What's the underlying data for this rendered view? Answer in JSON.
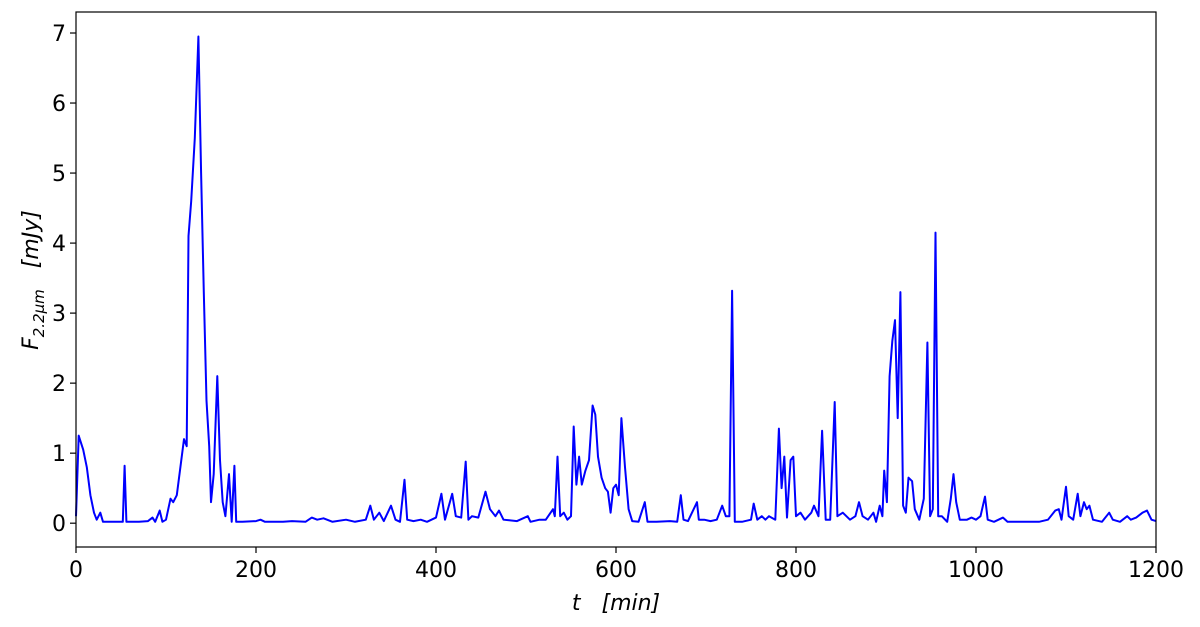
{
  "chart_data": {
    "type": "line",
    "x_label": {
      "symbol": "t",
      "unit": "[min]"
    },
    "y_label": {
      "symbol": "F",
      "subscript": "2.2μm",
      "unit": "[mJy]"
    },
    "xlim": [
      0,
      1200
    ],
    "xticks": [
      0,
      200,
      400,
      600,
      800,
      1000,
      1200
    ],
    "ylim": [
      -0.34,
      7.3
    ],
    "yticks": [
      0,
      1,
      2,
      3,
      4,
      5,
      6,
      7
    ],
    "series": [
      {
        "color": "#0000ff",
        "x": [
          0,
          3,
          8,
          12,
          16,
          20,
          23,
          27,
          30,
          52,
          54,
          56,
          70,
          80,
          85,
          88,
          93,
          96,
          100,
          105,
          108,
          112,
          117,
          120,
          123,
          125,
          128,
          132,
          136,
          139,
          142,
          145,
          148,
          150,
          153,
          157,
          160,
          163,
          166,
          170,
          173,
          176,
          178,
          185,
          200,
          205,
          210,
          230,
          240,
          255,
          262,
          268,
          275,
          285,
          300,
          310,
          322,
          327,
          331,
          337,
          342,
          350,
          355,
          360,
          365,
          368,
          375,
          383,
          390,
          400,
          406,
          410,
          418,
          422,
          428,
          433,
          436,
          440,
          447,
          455,
          460,
          466,
          470,
          475,
          490,
          502,
          505,
          515,
          522,
          530,
          532,
          535,
          538,
          542,
          546,
          550,
          553,
          556,
          559,
          562,
          566,
          570,
          574,
          577,
          580,
          584,
          588,
          591,
          594,
          597,
          600,
          603,
          606,
          610,
          614,
          618,
          625,
          632,
          635,
          645,
          660,
          668,
          672,
          675,
          680,
          690,
          692,
          698,
          705,
          712,
          718,
          722,
          726,
          729,
          732,
          740,
          750,
          753,
          757,
          762,
          766,
          770,
          777,
          781,
          784,
          787,
          790,
          794,
          797,
          800,
          805,
          810,
          817,
          820,
          825,
          829,
          833,
          838,
          843,
          846,
          852,
          860,
          866,
          870,
          874,
          880,
          886,
          889,
          893,
          896,
          898,
          901,
          904,
          907,
          910,
          913,
          916,
          919,
          922,
          925,
          929,
          932,
          937,
          942,
          946,
          949,
          952,
          955,
          958,
          962,
          968,
          972,
          975,
          978,
          982,
          990,
          995,
          1000,
          1005,
          1010,
          1013,
          1020,
          1030,
          1035,
          1050,
          1070,
          1080,
          1088,
          1092,
          1095,
          1100,
          1103,
          1108,
          1113,
          1116,
          1120,
          1123,
          1126,
          1130,
          1140,
          1148,
          1152,
          1160,
          1168,
          1172,
          1178,
          1185,
          1190,
          1195,
          1200
        ],
        "values": [
          0.1,
          1.25,
          1.05,
          0.8,
          0.4,
          0.15,
          0.05,
          0.15,
          0.02,
          0.02,
          0.82,
          0.02,
          0.02,
          0.03,
          0.08,
          0.02,
          0.18,
          0.02,
          0.05,
          0.35,
          0.3,
          0.4,
          0.9,
          1.2,
          1.1,
          4.1,
          4.6,
          5.5,
          6.95,
          5.0,
          3.3,
          1.75,
          1.1,
          0.3,
          0.7,
          2.1,
          0.9,
          0.3,
          0.1,
          0.7,
          0.02,
          0.82,
          0.02,
          0.02,
          0.03,
          0.05,
          0.02,
          0.02,
          0.03,
          0.02,
          0.08,
          0.05,
          0.07,
          0.02,
          0.05,
          0.02,
          0.05,
          0.25,
          0.05,
          0.15,
          0.03,
          0.25,
          0.05,
          0.02,
          0.62,
          0.05,
          0.03,
          0.05,
          0.02,
          0.08,
          0.42,
          0.05,
          0.42,
          0.1,
          0.08,
          0.88,
          0.05,
          0.1,
          0.08,
          0.45,
          0.2,
          0.1,
          0.18,
          0.05,
          0.03,
          0.1,
          0.02,
          0.05,
          0.05,
          0.2,
          0.1,
          0.95,
          0.1,
          0.15,
          0.05,
          0.1,
          1.38,
          0.55,
          0.95,
          0.55,
          0.75,
          0.9,
          1.68,
          1.55,
          0.95,
          0.65,
          0.5,
          0.45,
          0.15,
          0.5,
          0.55,
          0.4,
          1.5,
          0.8,
          0.2,
          0.03,
          0.02,
          0.3,
          0.02,
          0.02,
          0.03,
          0.02,
          0.4,
          0.05,
          0.03,
          0.3,
          0.05,
          0.05,
          0.03,
          0.05,
          0.25,
          0.1,
          0.1,
          3.32,
          0.02,
          0.02,
          0.05,
          0.28,
          0.05,
          0.1,
          0.05,
          0.1,
          0.05,
          1.35,
          0.5,
          0.95,
          0.08,
          0.9,
          0.95,
          0.1,
          0.15,
          0.05,
          0.15,
          0.25,
          0.1,
          1.32,
          0.05,
          0.05,
          1.73,
          0.1,
          0.15,
          0.05,
          0.1,
          0.3,
          0.1,
          0.05,
          0.15,
          0.02,
          0.25,
          0.1,
          0.75,
          0.3,
          2.1,
          2.6,
          2.9,
          1.5,
          3.3,
          0.25,
          0.15,
          0.65,
          0.6,
          0.2,
          0.05,
          0.35,
          2.58,
          0.1,
          0.2,
          4.15,
          0.1,
          0.1,
          0.02,
          0.35,
          0.7,
          0.3,
          0.05,
          0.05,
          0.08,
          0.05,
          0.1,
          0.38,
          0.05,
          0.02,
          0.08,
          0.02,
          0.02,
          0.02,
          0.05,
          0.18,
          0.2,
          0.05,
          0.52,
          0.1,
          0.05,
          0.42,
          0.1,
          0.3,
          0.2,
          0.25,
          0.05,
          0.02,
          0.15,
          0.05,
          0.02,
          0.1,
          0.05,
          0.08,
          0.15,
          0.18,
          0.05,
          0.03
        ]
      }
    ]
  }
}
